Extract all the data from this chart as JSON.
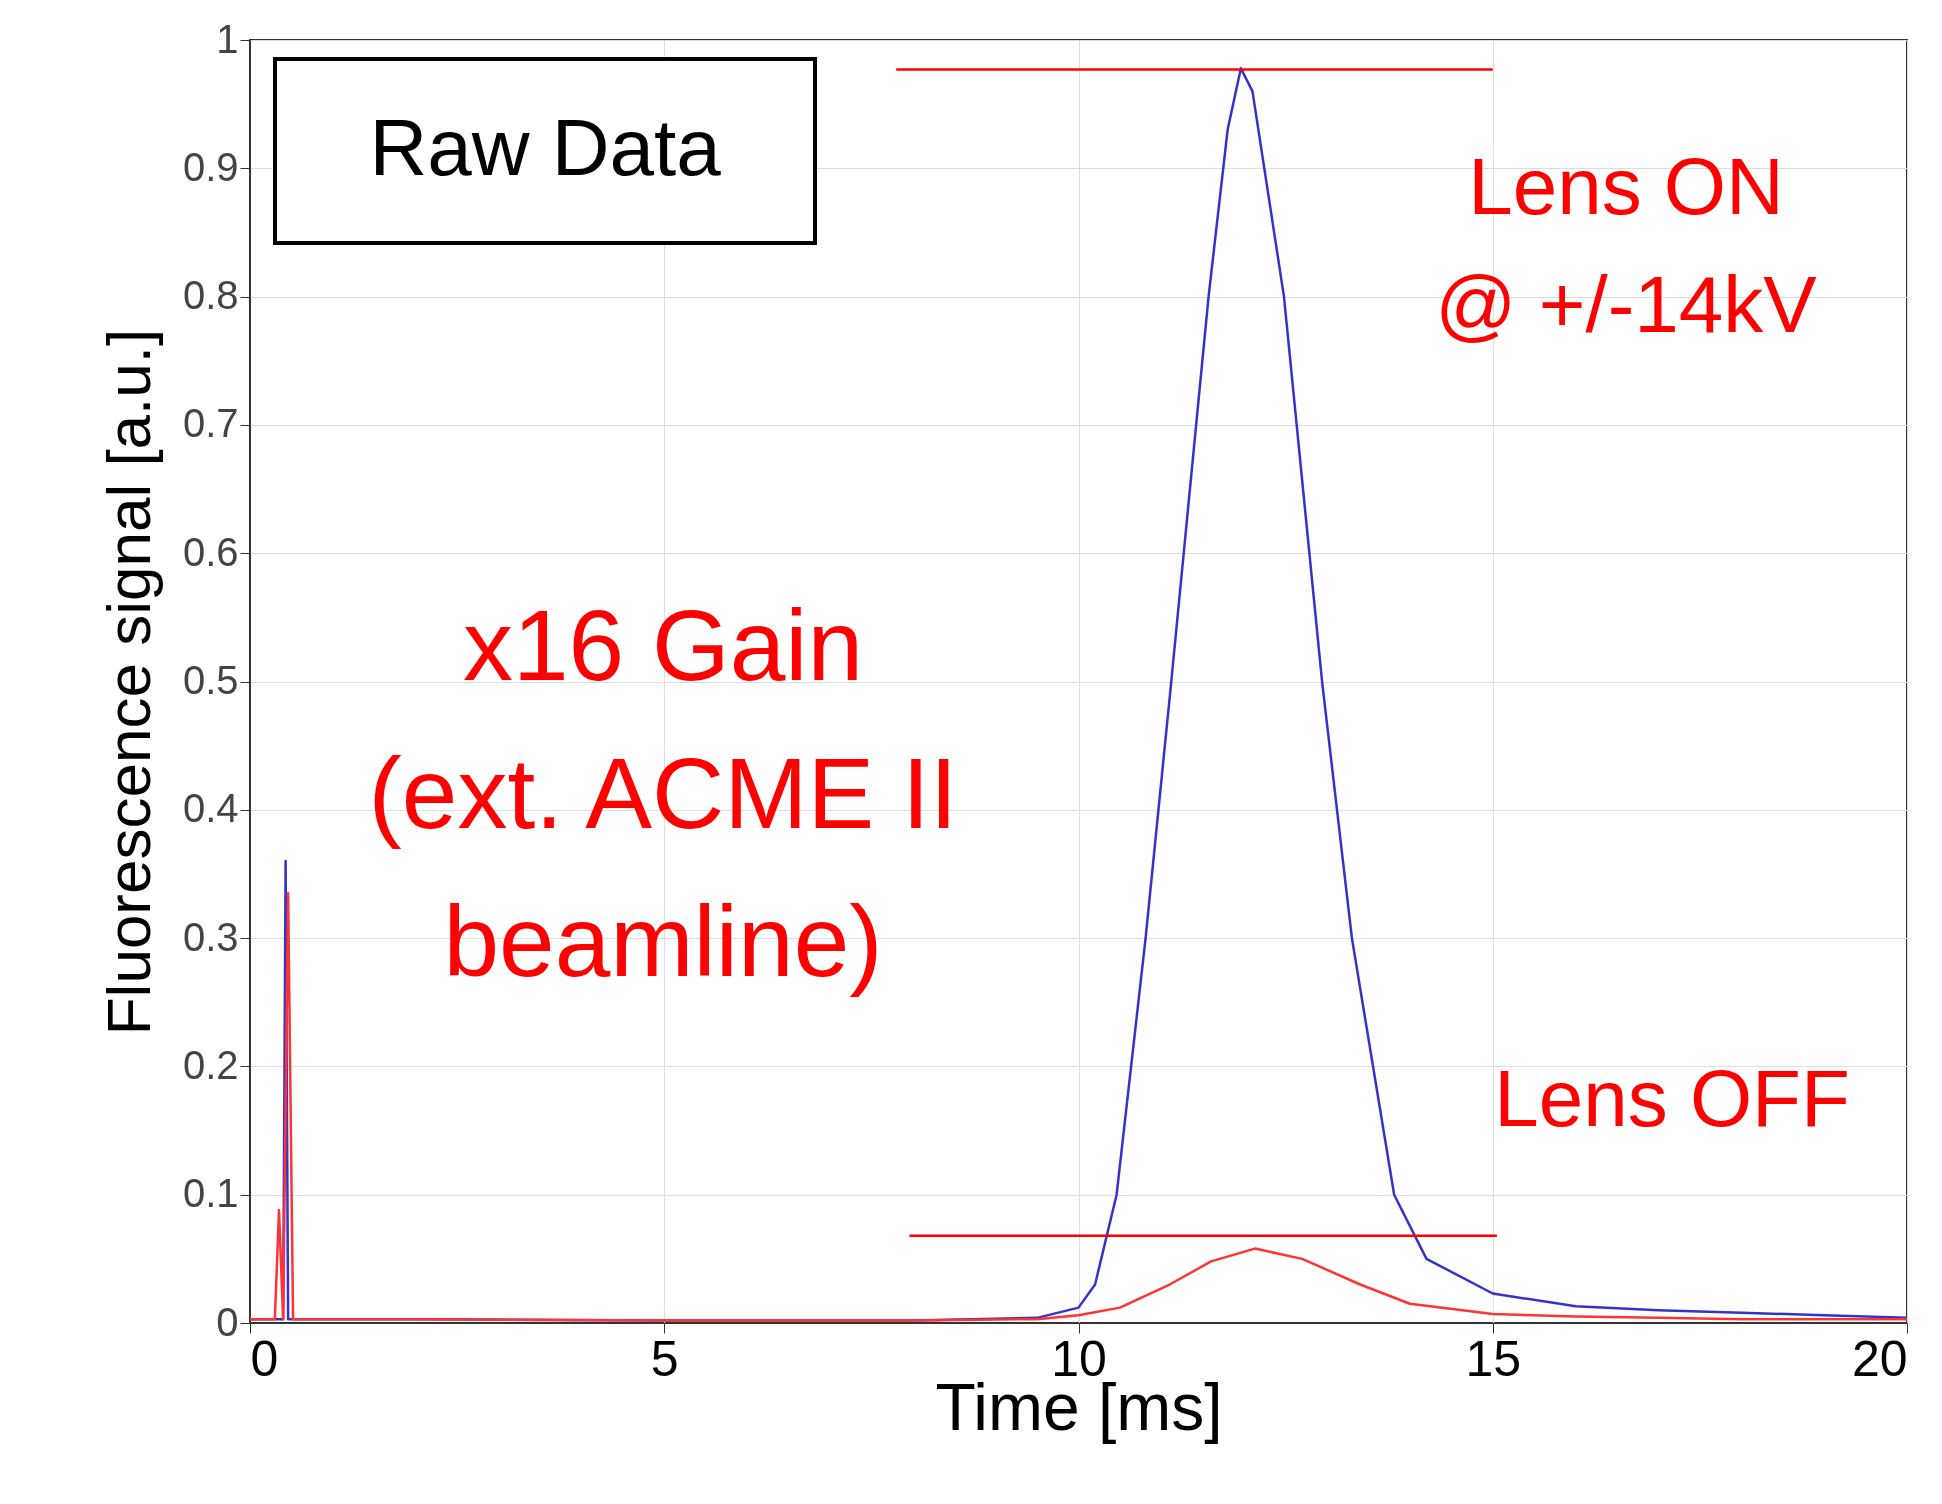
{
  "chart_data": {
    "type": "line",
    "xlabel": "Time [ms]",
    "ylabel": "Fluorescence signal [a.u.]",
    "xlim": [
      0,
      20
    ],
    "xticks": [
      0,
      5,
      10,
      15,
      20
    ],
    "ylim": [
      0,
      1
    ],
    "yticks": [
      0,
      0.1,
      0.2,
      0.3,
      0.4,
      0.5,
      0.6,
      0.7,
      0.8,
      0.9,
      1
    ],
    "grid": true,
    "marker": "none",
    "line_style": "solid",
    "series": [
      {
        "color": "#3333cc",
        "x": [
          0,
          0.3,
          0.4,
          0.43,
          0.46,
          0.55,
          2,
          5,
          8,
          9.5,
          10,
          10.2,
          10.46,
          10.81,
          11.12,
          11.57,
          11.8,
          11.96,
          12.1,
          12.48,
          12.94,
          13.3,
          13.81,
          14.2,
          15,
          16,
          17,
          18,
          19,
          20
        ],
        "values": [
          0.003,
          0.003,
          0.003,
          0.36,
          0.003,
          0.003,
          0.003,
          0.002,
          0.002,
          0.004,
          0.012,
          0.03,
          0.1,
          0.3,
          0.5,
          0.8,
          0.93,
          0.978,
          0.96,
          0.8,
          0.5,
          0.3,
          0.1,
          0.05,
          0.023,
          0.013,
          0.01,
          0.008,
          0.006,
          0.004
        ]
      },
      {
        "color": "#ff3333",
        "x": [
          0,
          0.3,
          0.35,
          0.4,
          0.46,
          0.52,
          2,
          5,
          8,
          9.5,
          10,
          10.5,
          11.1,
          11.6,
          12.13,
          12.7,
          13.4,
          14,
          15,
          16,
          17,
          18,
          19,
          20
        ],
        "values": [
          0.003,
          0.003,
          0.088,
          0.003,
          0.335,
          0.003,
          0.003,
          0.002,
          0.002,
          0.003,
          0.006,
          0.012,
          0.03,
          0.048,
          0.058,
          0.05,
          0.03,
          0.015,
          0.007,
          0.005,
          0.004,
          0.003,
          0.003,
          0.003
        ]
      },
      {
        "color": "#ff0000",
        "x": [
          7.8,
          15
        ],
        "values": [
          0.977,
          0.977
        ]
      },
      {
        "color": "#ff0000",
        "x": [
          7.96,
          15.05
        ],
        "values": [
          0.068,
          0.068
        ]
      }
    ],
    "annotations": [
      "Raw Data",
      "Lens ON\n@ +/-14kV",
      "x16 Gain\n(ext. ACME II\nbeamline)",
      "Lens OFF"
    ]
  }
}
